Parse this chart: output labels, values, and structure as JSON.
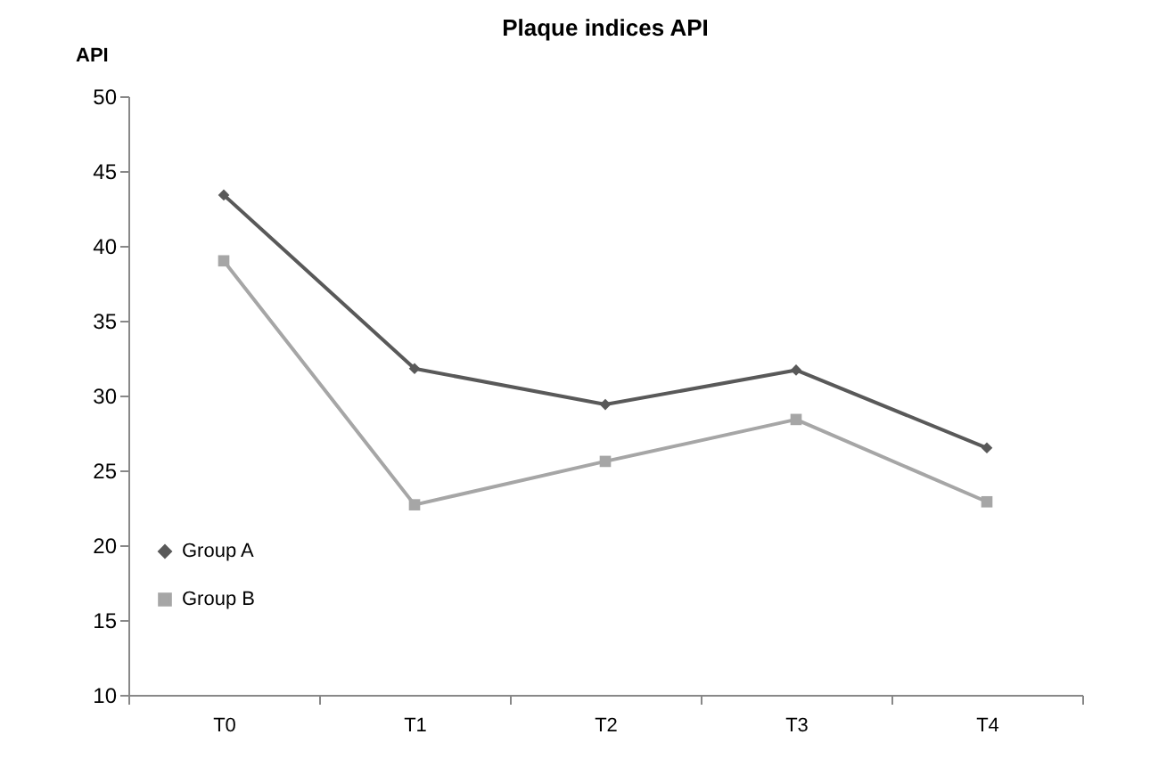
{
  "chart_data": {
    "type": "line",
    "title": "Plaque indices API",
    "ylabel": "API",
    "categories": [
      "T0",
      "T1",
      "T2",
      "T3",
      "T4"
    ],
    "series": [
      {
        "name": "Group A",
        "color": "#595959",
        "marker": "diamond",
        "values": [
          43.4,
          31.8,
          29.4,
          31.7,
          26.5
        ]
      },
      {
        "name": "Group B",
        "color": "#a6a6a6",
        "marker": "square",
        "values": [
          39.0,
          22.7,
          25.6,
          28.4,
          22.9
        ]
      }
    ],
    "ylim": [
      10,
      50
    ],
    "yticks": [
      10,
      15,
      20,
      25,
      30,
      35,
      40,
      45,
      50
    ],
    "grid": false,
    "legend": "bottom left",
    "line_style": "solid"
  }
}
